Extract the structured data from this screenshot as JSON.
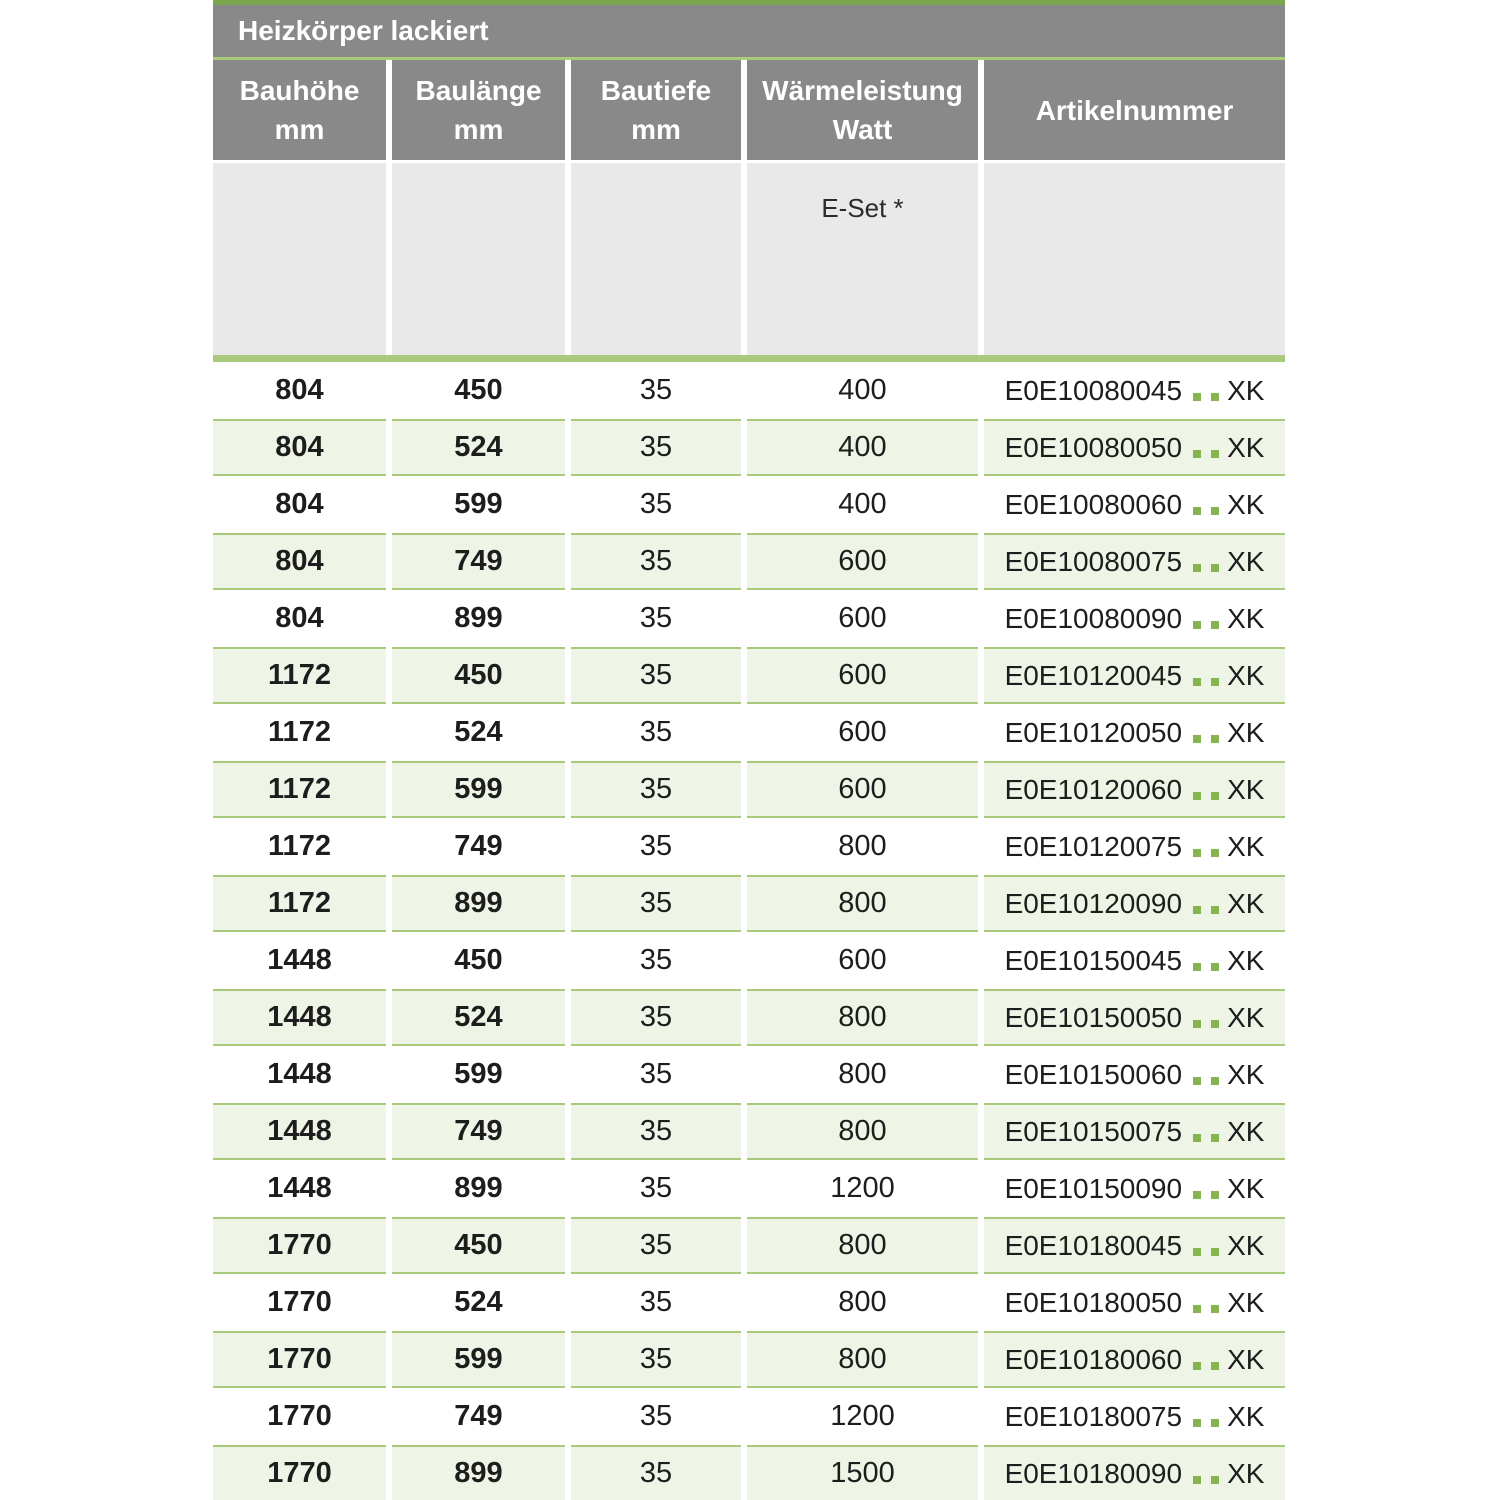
{
  "table": {
    "title": "Heizkörper lackiert",
    "columns": [
      {
        "label": "Bauhöhe",
        "unit": "mm"
      },
      {
        "label": "Baulänge",
        "unit": "mm"
      },
      {
        "label": "Bautiefe",
        "unit": "mm"
      },
      {
        "label": "Wärmeleistung",
        "unit": "Watt"
      },
      {
        "label": "Artikelnummer",
        "unit": ""
      }
    ],
    "subheader": {
      "eset_label": "E-Set *"
    },
    "artikel_dots": "..",
    "rows": [
      {
        "bauhoehe": "804",
        "baulaenge": "450",
        "bautiefe": "35",
        "watt": "400",
        "artikel_prefix": "E0E10080045",
        "artikel_suffix": "XK"
      },
      {
        "bauhoehe": "804",
        "baulaenge": "524",
        "bautiefe": "35",
        "watt": "400",
        "artikel_prefix": "E0E10080050",
        "artikel_suffix": "XK"
      },
      {
        "bauhoehe": "804",
        "baulaenge": "599",
        "bautiefe": "35",
        "watt": "400",
        "artikel_prefix": "E0E10080060",
        "artikel_suffix": "XK"
      },
      {
        "bauhoehe": "804",
        "baulaenge": "749",
        "bautiefe": "35",
        "watt": "600",
        "artikel_prefix": "E0E10080075",
        "artikel_suffix": "XK"
      },
      {
        "bauhoehe": "804",
        "baulaenge": "899",
        "bautiefe": "35",
        "watt": "600",
        "artikel_prefix": "E0E10080090",
        "artikel_suffix": "XK"
      },
      {
        "bauhoehe": "1172",
        "baulaenge": "450",
        "bautiefe": "35",
        "watt": "600",
        "artikel_prefix": "E0E10120045",
        "artikel_suffix": "XK"
      },
      {
        "bauhoehe": "1172",
        "baulaenge": "524",
        "bautiefe": "35",
        "watt": "600",
        "artikel_prefix": "E0E10120050",
        "artikel_suffix": "XK"
      },
      {
        "bauhoehe": "1172",
        "baulaenge": "599",
        "bautiefe": "35",
        "watt": "600",
        "artikel_prefix": "E0E10120060",
        "artikel_suffix": "XK"
      },
      {
        "bauhoehe": "1172",
        "baulaenge": "749",
        "bautiefe": "35",
        "watt": "800",
        "artikel_prefix": "E0E10120075",
        "artikel_suffix": "XK"
      },
      {
        "bauhoehe": "1172",
        "baulaenge": "899",
        "bautiefe": "35",
        "watt": "800",
        "artikel_prefix": "E0E10120090",
        "artikel_suffix": "XK"
      },
      {
        "bauhoehe": "1448",
        "baulaenge": "450",
        "bautiefe": "35",
        "watt": "600",
        "artikel_prefix": "E0E10150045",
        "artikel_suffix": "XK"
      },
      {
        "bauhoehe": "1448",
        "baulaenge": "524",
        "bautiefe": "35",
        "watt": "800",
        "artikel_prefix": "E0E10150050",
        "artikel_suffix": "XK"
      },
      {
        "bauhoehe": "1448",
        "baulaenge": "599",
        "bautiefe": "35",
        "watt": "800",
        "artikel_prefix": "E0E10150060",
        "artikel_suffix": "XK"
      },
      {
        "bauhoehe": "1448",
        "baulaenge": "749",
        "bautiefe": "35",
        "watt": "800",
        "artikel_prefix": "E0E10150075",
        "artikel_suffix": "XK"
      },
      {
        "bauhoehe": "1448",
        "baulaenge": "899",
        "bautiefe": "35",
        "watt": "1200",
        "artikel_prefix": "E0E10150090",
        "artikel_suffix": "XK"
      },
      {
        "bauhoehe": "1770",
        "baulaenge": "450",
        "bautiefe": "35",
        "watt": "800",
        "artikel_prefix": "E0E10180045",
        "artikel_suffix": "XK"
      },
      {
        "bauhoehe": "1770",
        "baulaenge": "524",
        "bautiefe": "35",
        "watt": "800",
        "artikel_prefix": "E0E10180050",
        "artikel_suffix": "XK"
      },
      {
        "bauhoehe": "1770",
        "baulaenge": "599",
        "bautiefe": "35",
        "watt": "800",
        "artikel_prefix": "E0E10180060",
        "artikel_suffix": "XK"
      },
      {
        "bauhoehe": "1770",
        "baulaenge": "749",
        "bautiefe": "35",
        "watt": "1200",
        "artikel_prefix": "E0E10180075",
        "artikel_suffix": "XK"
      },
      {
        "bauhoehe": "1770",
        "baulaenge": "899",
        "bautiefe": "35",
        "watt": "1500",
        "artikel_prefix": "E0E10180090",
        "artikel_suffix": "XK"
      }
    ]
  },
  "colors": {
    "header_gray": "#898989",
    "subheader_gray": "#E9E9E9",
    "accent_green_dark": "#7CA64D",
    "accent_green": "#A9C97B",
    "row_green": "#EFF5E6",
    "dot_green": "#86B44E",
    "text_dark": "#1D1D1D",
    "header_text": "#FFFFFF"
  }
}
